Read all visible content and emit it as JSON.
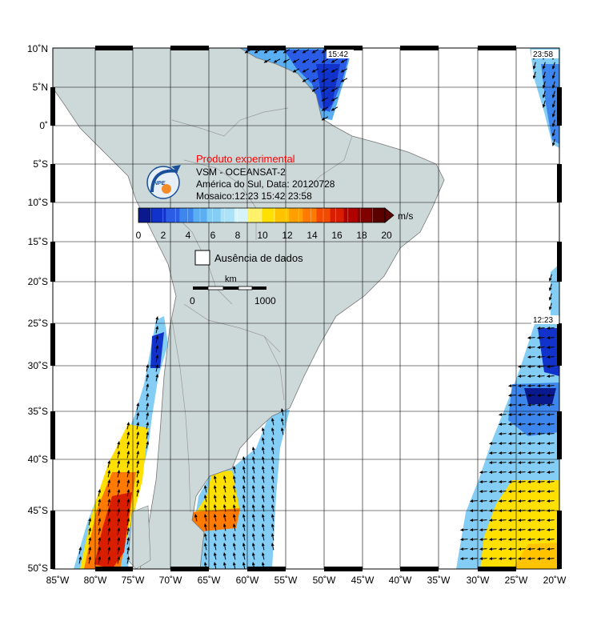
{
  "map": {
    "lon_ticks": [
      "85˚W",
      "80˚W",
      "75˚W",
      "70˚W",
      "65˚W",
      "60˚W",
      "55˚W",
      "50˚W",
      "45˚W",
      "40˚W",
      "35˚W",
      "30˚W",
      "25˚W",
      "20˚W"
    ],
    "lat_ticks": [
      "10˚N",
      "5˚N",
      "0˚",
      "5˚S",
      "10˚S",
      "15˚S",
      "20˚S",
      "25˚S",
      "30˚S",
      "35˚S",
      "40˚S",
      "45˚S",
      "50˚S"
    ],
    "pass_times": {
      "north": "15:42",
      "east_top": "23:58",
      "east_mid": "12:23"
    }
  },
  "legend": {
    "title": "Produto experimental",
    "line1": "VSM - OCEANSAT-2",
    "line2": "América do Sul, Data: 20120728",
    "line3": "Mosaico:12:23 15:42 23:58",
    "logo_text": "INPE",
    "colorbar_unit": "m/s",
    "colorbar_ticks": [
      "0",
      "2",
      "4",
      "6",
      "8",
      "10",
      "12",
      "14",
      "16",
      "18",
      "20"
    ],
    "colorbar_colors": [
      "#0a1a8c",
      "#1133cc",
      "#2a5ce6",
      "#3d86ee",
      "#5aaef2",
      "#84cdf5",
      "#abe2f7",
      "#d6f3fa",
      "#fff26b",
      "#ffe000",
      "#ffc300",
      "#ffa000",
      "#ff7a00",
      "#f24b00",
      "#d91e00",
      "#b00000",
      "#800000",
      "#5a0000"
    ],
    "no_data_label": "Ausência de dados",
    "scale_unit": "km",
    "scale_start": "0",
    "scale_end": "1000"
  },
  "colors": {
    "land": "#cdd9d8",
    "ocean": "#ffffff",
    "grid": "#000000"
  }
}
